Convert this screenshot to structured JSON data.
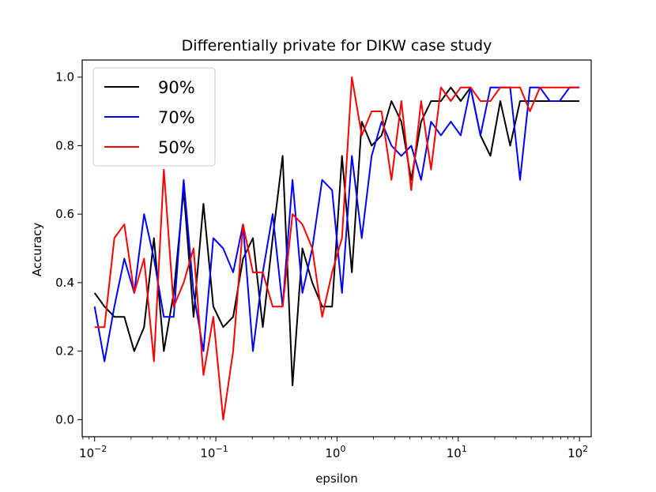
{
  "chart_data": {
    "type": "line",
    "title": "Differentially private for DIKW case study",
    "xlabel": "epsilon",
    "ylabel": "Accuracy",
    "xscale": "log",
    "xlim": [
      0.0079,
      125
    ],
    "ylim": [
      -0.05,
      1.05
    ],
    "xticks": [
      {
        "value": 0.01,
        "base": "10",
        "exp": "−2"
      },
      {
        "value": 0.1,
        "base": "10",
        "exp": "−1"
      },
      {
        "value": 1,
        "base": "10",
        "exp": "0"
      },
      {
        "value": 10,
        "base": "10",
        "exp": "1"
      },
      {
        "value": 100,
        "base": "10",
        "exp": "2"
      }
    ],
    "yticks": [
      {
        "value": 0.0,
        "label": "0.0"
      },
      {
        "value": 0.2,
        "label": "0.2"
      },
      {
        "value": 0.4,
        "label": "0.4"
      },
      {
        "value": 0.6,
        "label": "0.6"
      },
      {
        "value": 0.8,
        "label": "0.8"
      },
      {
        "value": 1.0,
        "label": "1.0"
      }
    ],
    "legend_position": "top-left",
    "x": [
      0.01,
      0.01207,
      0.01456,
      0.01758,
      0.02121,
      0.0256,
      0.03089,
      0.03728,
      0.04498,
      0.05429,
      0.06551,
      0.07906,
      0.09541,
      0.11514,
      0.13895,
      0.16768,
      0.20236,
      0.24421,
      0.29471,
      0.35565,
      0.42919,
      0.51795,
      0.62506,
      0.75431,
      0.9103,
      1.09854,
      1.32571,
      1.59986,
      1.9307,
      2.32995,
      2.81177,
      3.39322,
      4.09492,
      4.94171,
      5.96362,
      7.19686,
      8.68511,
      10.4811,
      12.6486,
      15.2642,
      18.4207,
      22.23,
      26.827,
      32.3746,
      39.0694,
      47.1487,
      56.8987,
      68.6649,
      82.8643,
      100.0
    ],
    "series": [
      {
        "name": "90%",
        "color": "#000000",
        "values": [
          0.37,
          0.33,
          0.3,
          0.3,
          0.2,
          0.27,
          0.53,
          0.2,
          0.37,
          0.67,
          0.3,
          0.63,
          0.33,
          0.27,
          0.3,
          0.47,
          0.53,
          0.27,
          0.53,
          0.77,
          0.1,
          0.5,
          0.4,
          0.33,
          0.33,
          0.77,
          0.43,
          0.87,
          0.8,
          0.83,
          0.93,
          0.87,
          0.7,
          0.87,
          0.93,
          0.93,
          0.97,
          0.93,
          0.97,
          0.83,
          0.77,
          0.93,
          0.8,
          0.93,
          0.93,
          0.93,
          0.93,
          0.93,
          0.93,
          0.93
        ]
      },
      {
        "name": "70%",
        "color": "#0000ff",
        "values": [
          0.33,
          0.17,
          0.33,
          0.47,
          0.37,
          0.6,
          0.47,
          0.3,
          0.3,
          0.7,
          0.37,
          0.2,
          0.53,
          0.5,
          0.43,
          0.57,
          0.2,
          0.43,
          0.6,
          0.33,
          0.7,
          0.37,
          0.5,
          0.7,
          0.67,
          0.37,
          0.77,
          0.53,
          0.77,
          0.87,
          0.8,
          0.77,
          0.8,
          0.7,
          0.87,
          0.83,
          0.87,
          0.83,
          0.97,
          0.83,
          0.97,
          0.97,
          0.97,
          0.7,
          0.97,
          0.97,
          0.93,
          0.93,
          0.97,
          0.97
        ]
      },
      {
        "name": "50%",
        "color": "#ff0000",
        "values": [
          0.27,
          0.27,
          0.53,
          0.57,
          0.37,
          0.47,
          0.17,
          0.73,
          0.33,
          0.4,
          0.5,
          0.13,
          0.3,
          0.0,
          0.2,
          0.57,
          0.43,
          0.43,
          0.33,
          0.33,
          0.6,
          0.57,
          0.5,
          0.3,
          0.43,
          0.53,
          1.0,
          0.83,
          0.9,
          0.9,
          0.7,
          0.93,
          0.67,
          0.93,
          0.73,
          0.97,
          0.93,
          0.97,
          0.97,
          0.93,
          0.93,
          0.97,
          0.97,
          0.97,
          0.9,
          0.97,
          0.97,
          0.97,
          0.97,
          0.97
        ]
      }
    ]
  }
}
